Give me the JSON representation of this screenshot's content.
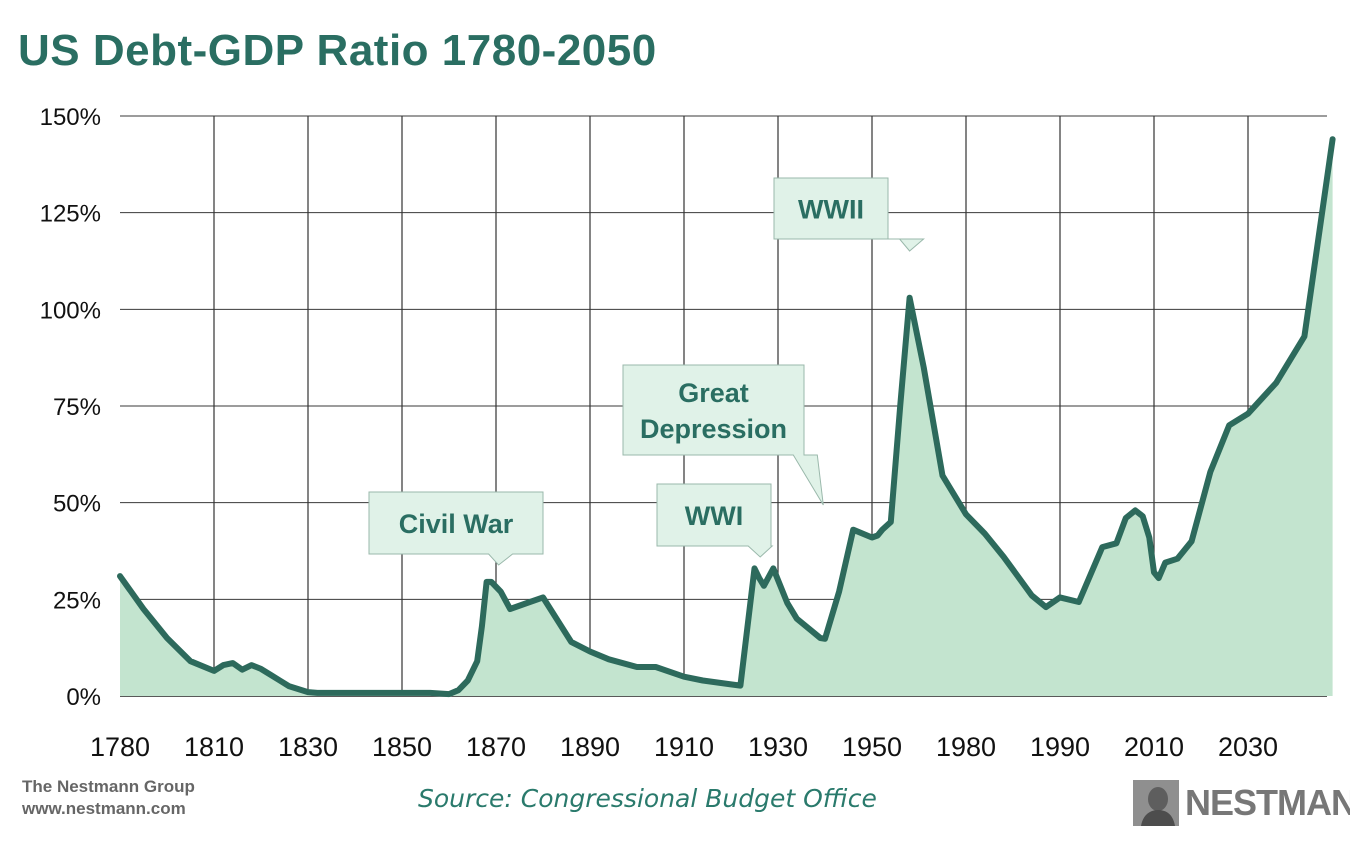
{
  "title": "US Debt-GDP Ratio 1780-2050",
  "source": "Source: Congressional Budget Office",
  "credit_line1": "The Nestmann Group",
  "credit_line2": "www.nestmann.com",
  "logo_text": "NESTMANN",
  "colors": {
    "accent": "#2a6e62",
    "line": "#2d6a5c",
    "fill": "#c3e4cf",
    "callout_bg": "#e0f2e8",
    "grid": "#333333"
  },
  "chart_data": {
    "type": "area",
    "title": "US Debt-GDP Ratio 1780-2050",
    "y_ticks": [
      "0%",
      "25%",
      "50%",
      "75%",
      "100%",
      "125%",
      "150%"
    ],
    "y_tick_values": [
      0,
      25,
      50,
      75,
      100,
      125,
      150
    ],
    "ylim": [
      0,
      150
    ],
    "x_ticks": [
      "1780",
      "1810",
      "1830",
      "1850",
      "1870",
      "1890",
      "1910",
      "1930",
      "1950",
      "1980",
      "1990",
      "2010",
      "2030"
    ],
    "grid": true,
    "note": "x values are positions along the printed (non-uniform) tick axis: 0 = 1780 tick, 1 = next tick, etc.; the last tick 2030 is 12 and the series ends at about 12.9",
    "series": [
      {
        "x": [
          0,
          0.25,
          0.5,
          0.75,
          1.0,
          1.1,
          1.2,
          1.3,
          1.4,
          1.5,
          1.6,
          1.7,
          1.8,
          2.0,
          2.1,
          2.3,
          2.5,
          2.9,
          3.3,
          3.5,
          3.6,
          3.7,
          3.8,
          3.85,
          3.9,
          3.95,
          4.05,
          4.15,
          4.3,
          4.5,
          4.8,
          5.0,
          5.2,
          5.5,
          5.7,
          6.0,
          6.2,
          6.5,
          6.6,
          6.75,
          6.8,
          6.85,
          6.95,
          7.1,
          7.2,
          7.45,
          7.5,
          7.65,
          7.8,
          8.0,
          8.06,
          8.11,
          8.2,
          8.3,
          8.4,
          8.55,
          8.75,
          9.0,
          9.2,
          9.4,
          9.55,
          9.7,
          9.85,
          10.0,
          10.2,
          10.45,
          10.6,
          10.7,
          10.8,
          10.88,
          10.95,
          11.0,
          11.05,
          11.12,
          11.25,
          11.4,
          11.6,
          11.8,
          12.0,
          12.3,
          12.6,
          12.9
        ],
        "y": [
          31,
          22.5,
          15,
          9,
          6.5,
          8,
          8.5,
          6.8,
          8,
          7,
          5.5,
          4,
          2.5,
          1,
          0.8,
          0.8,
          0.8,
          0.8,
          0.8,
          0.5,
          1.5,
          4,
          9,
          18,
          29.5,
          29.5,
          27,
          22.5,
          23.8,
          25.5,
          14,
          11.5,
          9.5,
          7.5,
          7.5,
          5,
          4,
          3,
          2.7,
          33,
          30.5,
          28.5,
          33,
          24,
          20,
          15,
          14.8,
          27,
          43,
          41,
          41.5,
          43,
          45,
          75,
          103,
          85,
          57,
          47,
          42,
          36,
          31,
          26,
          23,
          25.5,
          24.3,
          38.5,
          39.5,
          46,
          48,
          46.5,
          41,
          32,
          30.5,
          34.5,
          35.5,
          40,
          58,
          70,
          73,
          81,
          93,
          144
        ]
      }
    ],
    "annotations": [
      {
        "label": "Civil War",
        "x": 3.9,
        "y": 29.5
      },
      {
        "label": "WWI",
        "x": 6.8,
        "y": 30.5
      },
      {
        "label_lines": [
          "Great",
          "Depression"
        ],
        "x": 7.45,
        "y": 44
      },
      {
        "label": "WWII",
        "x": 8.4,
        "y": 103
      }
    ]
  }
}
